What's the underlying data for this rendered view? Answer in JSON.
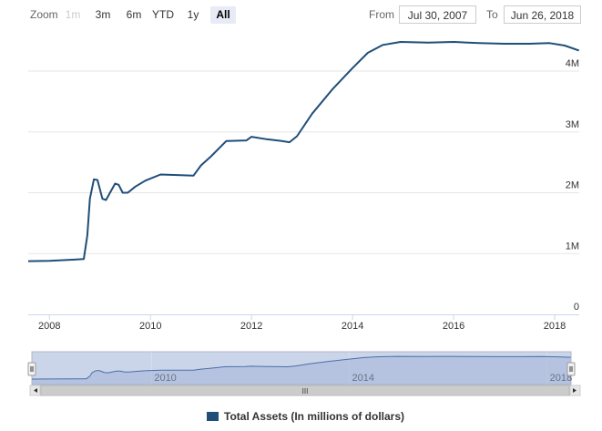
{
  "toolbar": {
    "zoom_label": "Zoom",
    "buttons": [
      {
        "label": "1m",
        "state": "disabled"
      },
      {
        "label": "3m",
        "state": "normal"
      },
      {
        "label": "6m",
        "state": "normal"
      },
      {
        "label": "YTD",
        "state": "normal"
      },
      {
        "label": "1y",
        "state": "normal"
      },
      {
        "label": "All",
        "state": "active"
      }
    ],
    "from_label": "From",
    "from_value": "Jul 30, 2007",
    "to_label": "To",
    "to_value": "Jun 26, 2018"
  },
  "navigator": {
    "scrollbar_grip": "III",
    "tick_labels": [
      "2010",
      "2014",
      "2018"
    ]
  },
  "colors": {
    "series_line": "#1f4e79",
    "navigator_fill": "#c5d0e8",
    "navigator_line": "#4a6fa8",
    "gridline": "#e6e6e6",
    "active_button": "#e6ebf5"
  },
  "chart_data": {
    "type": "line",
    "title": "",
    "xlabel": "",
    "ylabel": "",
    "xlim": [
      "2007-07-30",
      "2018-06-26"
    ],
    "ylim": [
      0,
      4600000
    ],
    "x_ticks": [
      "2008",
      "2010",
      "2012",
      "2014",
      "2016",
      "2018"
    ],
    "y_ticks": [
      "0",
      "1M",
      "2M",
      "3M",
      "4M"
    ],
    "grid": "horizontal",
    "legend": "bottom-center",
    "series": [
      {
        "name": "Total Assets (In millions of dollars)",
        "x": [
          2007.58,
          2008.0,
          2008.5,
          2008.68,
          2008.75,
          2008.8,
          2008.88,
          2008.95,
          2009.05,
          2009.12,
          2009.2,
          2009.3,
          2009.37,
          2009.45,
          2009.55,
          2009.7,
          2009.9,
          2010.2,
          2010.6,
          2010.85,
          2011.0,
          2011.2,
          2011.5,
          2011.9,
          2012.0,
          2012.3,
          2012.6,
          2012.75,
          2012.9,
          2013.2,
          2013.6,
          2014.0,
          2014.3,
          2014.6,
          2014.95,
          2015.5,
          2016.0,
          2016.5,
          2017.0,
          2017.5,
          2017.9,
          2018.2,
          2018.48
        ],
        "y": [
          875000,
          880000,
          900000,
          910000,
          1300000,
          1900000,
          2220000,
          2210000,
          1900000,
          1880000,
          2000000,
          2150000,
          2130000,
          2000000,
          2000000,
          2100000,
          2200000,
          2300000,
          2290000,
          2280000,
          2450000,
          2600000,
          2850000,
          2860000,
          2920000,
          2880000,
          2850000,
          2830000,
          2930000,
          3300000,
          3700000,
          4050000,
          4300000,
          4430000,
          4480000,
          4470000,
          4480000,
          4460000,
          4450000,
          4450000,
          4460000,
          4420000,
          4340000
        ]
      }
    ]
  }
}
